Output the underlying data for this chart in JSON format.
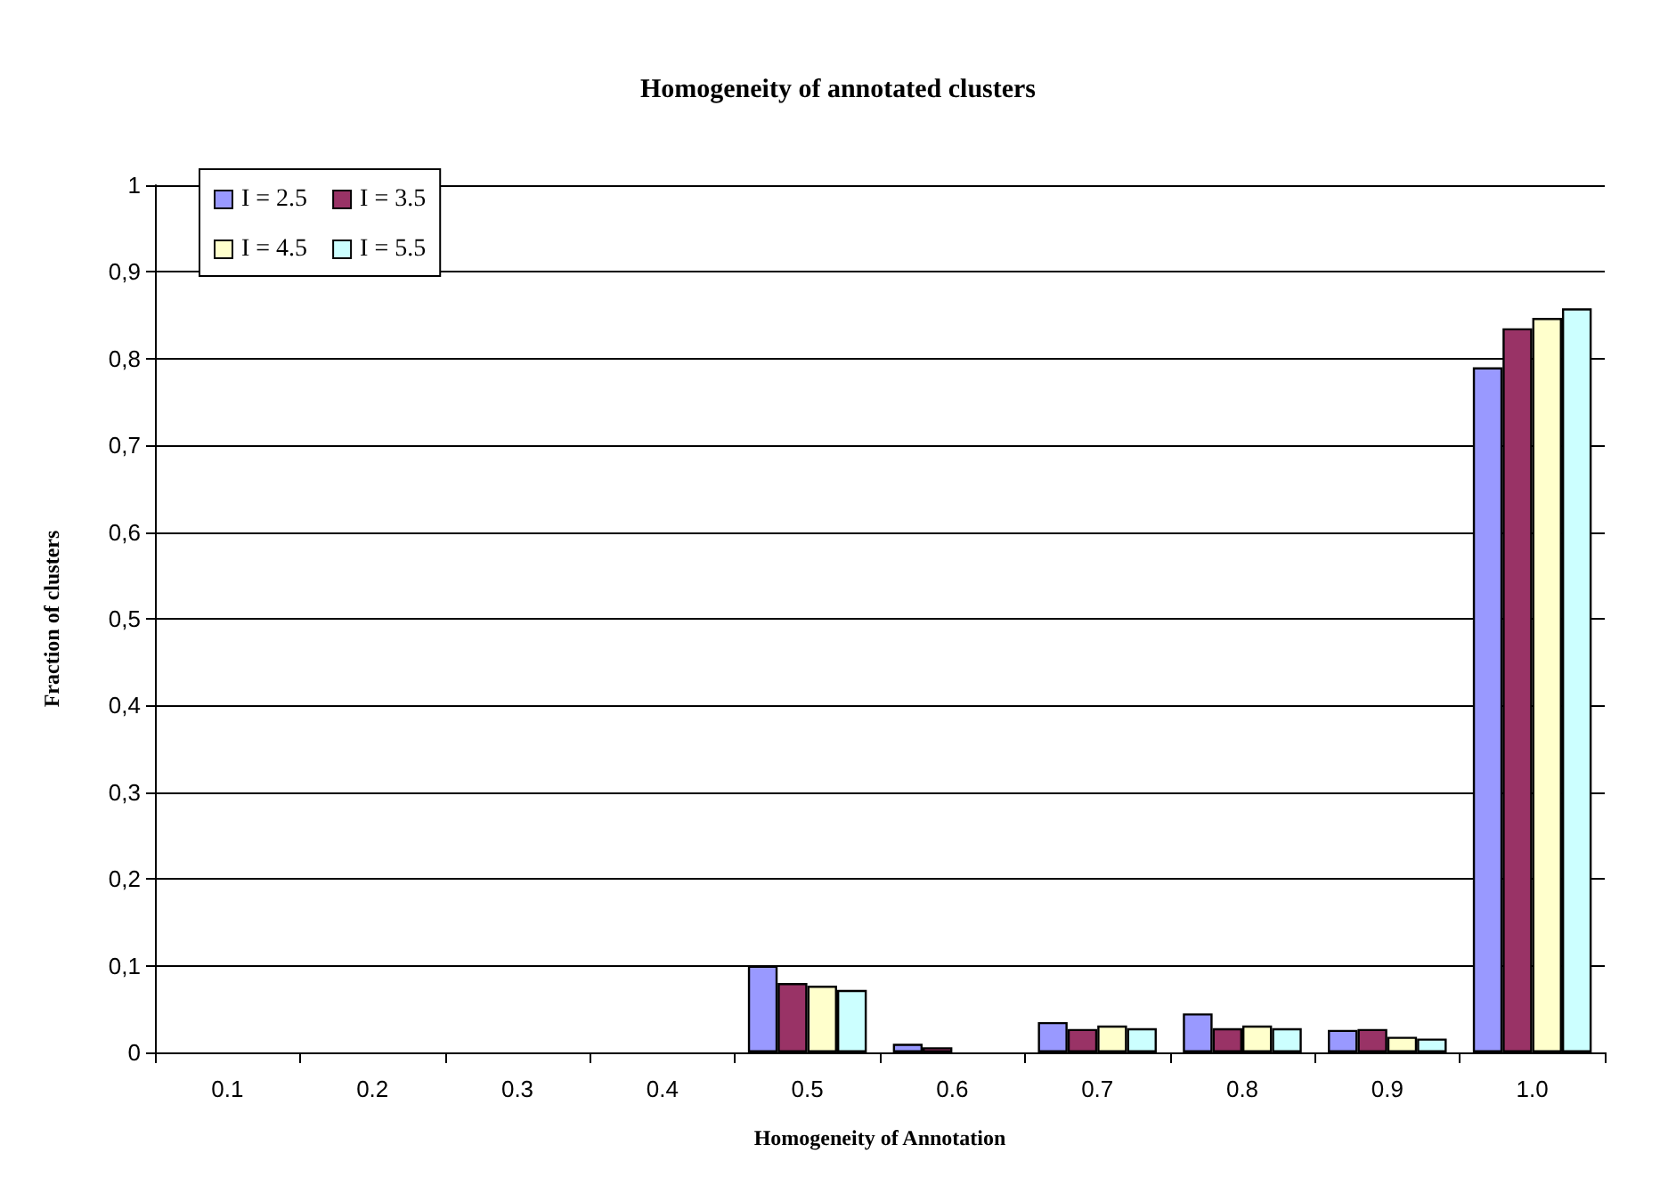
{
  "chart_data": {
    "type": "bar",
    "title": "Homogeneity of annotated clusters",
    "xlabel": "Homogeneity of Annotation",
    "ylabel": "Fraction of clusters",
    "categories": [
      "0.1",
      "0.2",
      "0.3",
      "0.4",
      "0.5",
      "0.6",
      "0.7",
      "0.8",
      "0.9",
      "1.0"
    ],
    "series": [
      {
        "name": "I = 2.5",
        "color": "#9999ff",
        "values": [
          null,
          null,
          null,
          null,
          0.1,
          0.01,
          0.035,
          0.045,
          0.026,
          0.79
        ]
      },
      {
        "name": "I = 3.5",
        "color": "#993366",
        "values": [
          null,
          null,
          null,
          null,
          0.08,
          0.006,
          0.027,
          0.028,
          0.027,
          0.835
        ]
      },
      {
        "name": "I = 4.5",
        "color": "#ffffcc",
        "values": [
          null,
          null,
          null,
          null,
          0.077,
          null,
          0.031,
          0.031,
          0.018,
          0.847
        ]
      },
      {
        "name": "I = 5.5",
        "color": "#ccffff",
        "values": [
          null,
          null,
          null,
          null,
          0.072,
          null,
          0.028,
          0.028,
          0.016,
          0.858
        ]
      }
    ],
    "ylim": [
      0,
      1
    ],
    "yticks": [
      0,
      {
        "value": 0.1,
        "label": "0,1"
      },
      {
        "value": 0.2,
        "label": "0,2"
      },
      {
        "value": 0.3,
        "label": "0,3"
      },
      {
        "value": 0.4,
        "label": "0,4"
      },
      {
        "value": 0.5,
        "label": "0,5"
      },
      {
        "value": 0.6,
        "label": "0,6"
      },
      {
        "value": 0.7,
        "label": "0,7"
      },
      {
        "value": 0.8,
        "label": "0,8"
      },
      {
        "value": 0.9,
        "label": "0,9"
      },
      1
    ],
    "grid": "y",
    "legend": "top left"
  }
}
